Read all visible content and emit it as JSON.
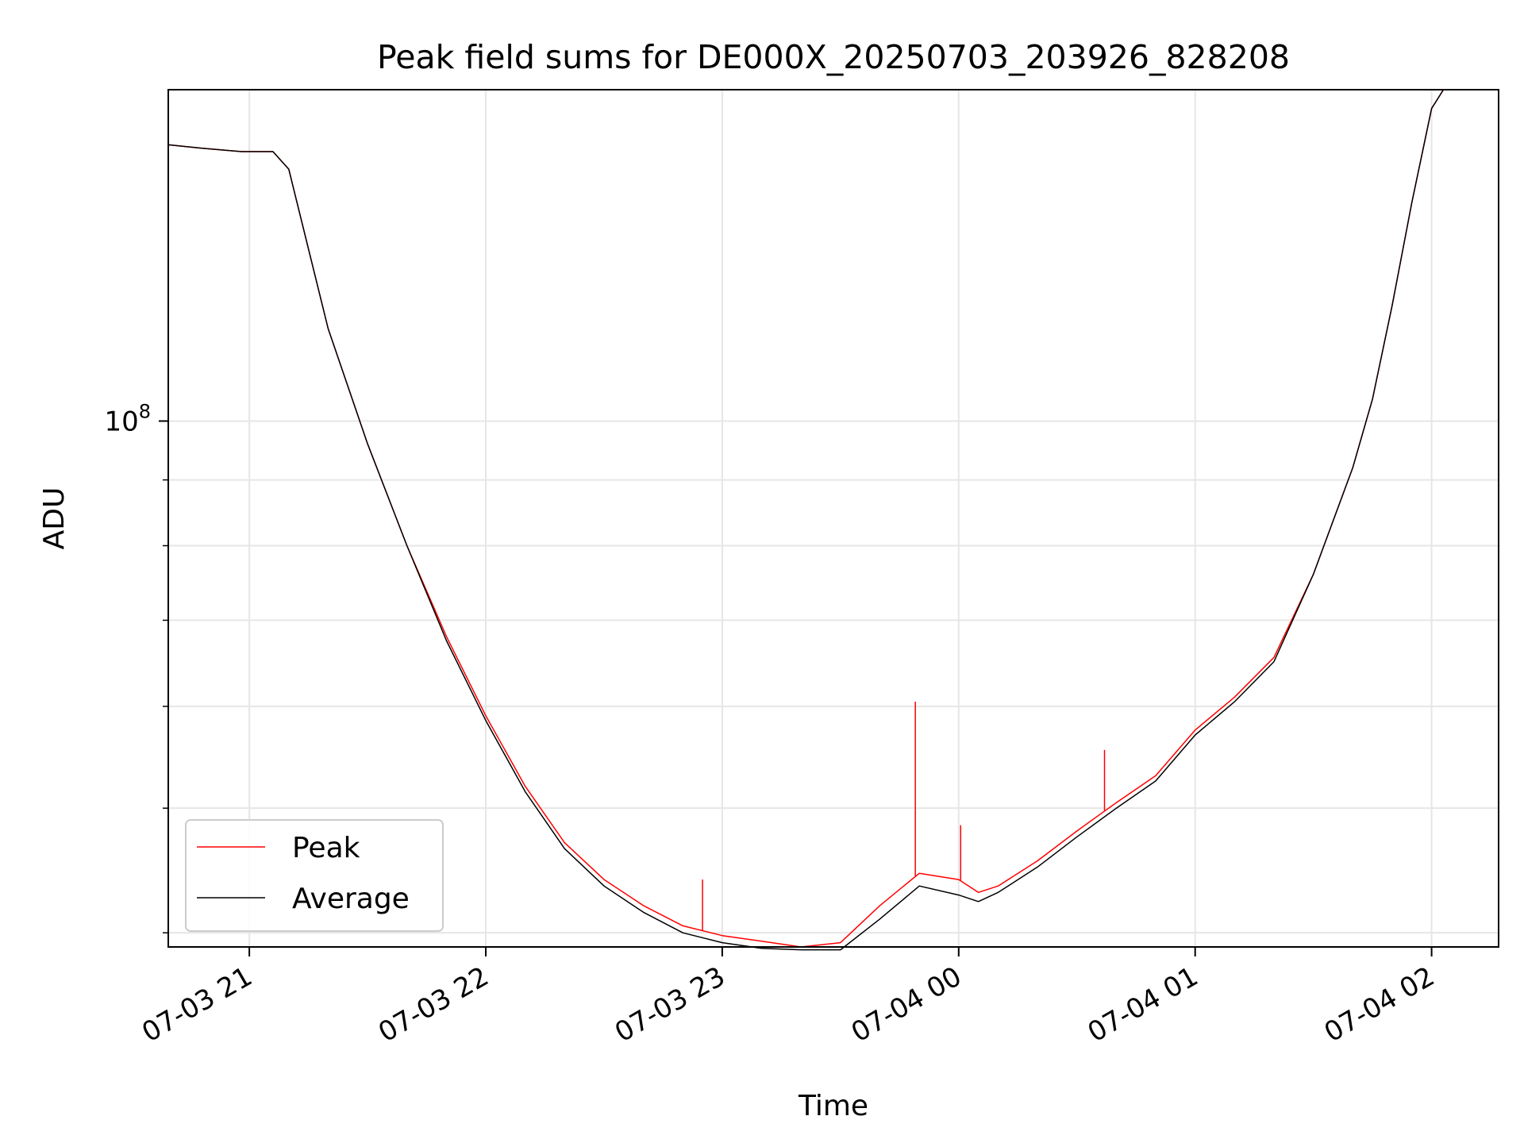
{
  "chart_data": {
    "type": "line",
    "title": "Peak field sums for DE000X_20250703_203926_828208",
    "xlabel": "Time",
    "ylabel": "ADU",
    "yscale": "log",
    "xlim": [
      "2025-07-03 20:39:26",
      "2025-07-04 02:17:00"
    ],
    "ylim": [
      39000000,
      181000000
    ],
    "grid": true,
    "legend": "lower-left",
    "x_ticks": [
      "07-03 21",
      "07-03 22",
      "07-03 23",
      "07-04 00",
      "07-04 01",
      "07-04 02"
    ],
    "y_ticks": [
      {
        "value": 100000000,
        "base": "10",
        "exp": "8"
      }
    ],
    "y_minor_ticks": [
      40000000,
      50000000,
      60000000,
      70000000,
      80000000,
      90000000
    ],
    "x": [
      "2025-07-03 20:39:26",
      "2025-07-03 20:48:00",
      "2025-07-03 20:58:00",
      "2025-07-03 21:06:00",
      "2025-07-03 21:10:00",
      "2025-07-03 21:20:00",
      "2025-07-03 21:30:00",
      "2025-07-03 21:40:00",
      "2025-07-03 21:50:00",
      "2025-07-03 22:00:00",
      "2025-07-03 22:10:00",
      "2025-07-03 22:20:00",
      "2025-07-03 22:30:00",
      "2025-07-03 22:40:00",
      "2025-07-03 22:50:00",
      "2025-07-03 23:00:00",
      "2025-07-03 23:10:00",
      "2025-07-03 23:20:00",
      "2025-07-03 23:30:00",
      "2025-07-03 23:40:00",
      "2025-07-03 23:50:00",
      "2025-07-04 00:00:00",
      "2025-07-04 00:05:00",
      "2025-07-04 00:10:00",
      "2025-07-04 00:20:00",
      "2025-07-04 00:30:00",
      "2025-07-04 00:40:00",
      "2025-07-04 00:50:00",
      "2025-07-04 01:00:00",
      "2025-07-04 01:10:00",
      "2025-07-04 01:20:00",
      "2025-07-04 01:30:00",
      "2025-07-04 01:40:00",
      "2025-07-04 01:45:00",
      "2025-07-04 01:50:00",
      "2025-07-04 01:55:00",
      "2025-07-04 02:00:00",
      "2025-07-04 02:03:00"
    ],
    "series": [
      {
        "name": "Peak",
        "color": "#ff0000",
        "values": [
          164000000,
          163000000,
          162000000,
          162000000,
          157000000,
          118000000,
          96000000,
          80000000,
          68000000,
          59000000,
          52000000,
          47000000,
          44000000,
          42000000,
          40500000,
          39800000,
          39400000,
          39000000,
          39300000,
          42000000,
          44500000,
          44000000,
          43000000,
          43500000,
          45500000,
          48000000,
          50500000,
          53000000,
          57500000,
          61000000,
          65500000,
          76000000,
          92000000,
          104000000,
          123000000,
          148000000,
          175000000,
          181000000
        ],
        "spikes": [
          {
            "x": "2025-07-03 22:55:00",
            "y": 44000000
          },
          {
            "x": "2025-07-03 23:49:00",
            "y": 60500000
          },
          {
            "x": "2025-07-04 00:00:30",
            "y": 48500000
          },
          {
            "x": "2025-07-04 00:37:00",
            "y": 55500000
          }
        ]
      },
      {
        "name": "Average",
        "color": "#000000",
        "values": [
          164000000,
          163000000,
          162000000,
          162000000,
          157000000,
          118000000,
          96000000,
          80000000,
          67500000,
          58500000,
          51500000,
          46500000,
          43500000,
          41500000,
          40000000,
          39300000,
          38900000,
          38800000,
          38800000,
          41000000,
          43500000,
          42800000,
          42300000,
          43000000,
          45000000,
          47500000,
          50000000,
          52500000,
          57000000,
          60500000,
          65000000,
          76000000,
          92000000,
          104000000,
          123000000,
          148000000,
          175000000,
          181000000
        ]
      }
    ]
  }
}
